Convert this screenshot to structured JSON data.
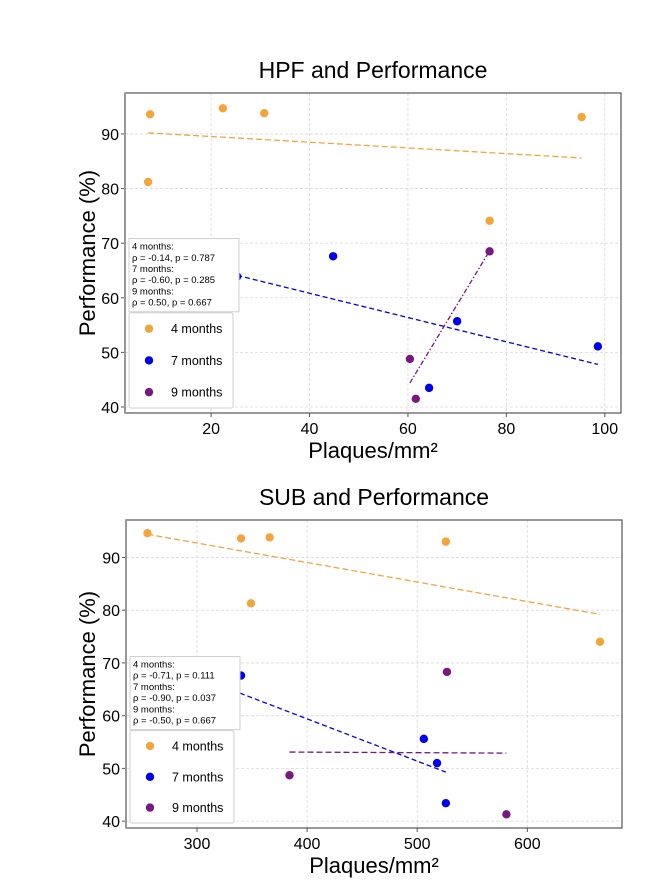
{
  "chart_data": [
    {
      "type": "scatter",
      "title": "HPF and Performance",
      "xlabel": "Plaques/mm²",
      "ylabel": "Performance (%)",
      "xlim": [
        2.5,
        103.3
      ],
      "ylim": [
        38.9,
        97.5
      ],
      "xticks": [
        20,
        40,
        60,
        80,
        100
      ],
      "yticks": [
        40,
        50,
        60,
        70,
        80,
        90
      ],
      "grid": true,
      "legend_position": "lower-left",
      "stats_text": [
        "4 months:",
        "ρ = -0.14, p = 0.787",
        "7 months:",
        "ρ = -0.60, p = 0.285",
        "9 months:",
        "ρ = 0.50, p = 0.667"
      ],
      "series": [
        {
          "name": "4 months",
          "color": "#f4a53a",
          "points": [
            [
              7.6,
              93.6
            ],
            [
              22.4,
              94.7
            ],
            [
              30.8,
              93.8
            ],
            [
              7.2,
              81.2
            ],
            [
              95.3,
              93.1
            ],
            [
              76.6,
              74.1
            ]
          ],
          "trendline": [
            [
              7.2,
              90.2
            ],
            [
              95.3,
              85.6
            ]
          ],
          "dash": "6,3"
        },
        {
          "name": "7 months",
          "color": "#0000ee",
          "points": [
            [
              25.3,
              63.9
            ],
            [
              44.8,
              67.6
            ],
            [
              70.0,
              55.7
            ],
            [
              64.3,
              43.5
            ],
            [
              98.6,
              51.1
            ]
          ],
          "trendline": [
            [
              25.3,
              64.1
            ],
            [
              98.6,
              47.8
            ]
          ],
          "dash": "5,3"
        },
        {
          "name": "9 months",
          "color": "#761a80",
          "points": [
            [
              76.6,
              68.5
            ],
            [
              60.4,
              48.8
            ],
            [
              61.6,
              41.5
            ]
          ],
          "trendline": [
            [
              60.4,
              44.4
            ],
            [
              76.4,
              68.3
            ]
          ],
          "dash": "5,2,1.5,2"
        }
      ]
    },
    {
      "type": "scatter",
      "title": "SUB and Performance",
      "xlabel": "Plaques/mm²",
      "ylabel": "Performance (%)",
      "xlim": [
        235.5,
        686
      ],
      "ylim": [
        38.7,
        97.1
      ],
      "xticks": [
        300,
        400,
        500,
        600
      ],
      "yticks": [
        40,
        50,
        60,
        70,
        80,
        90
      ],
      "grid": true,
      "legend_position": "lower-left",
      "stats_text": [
        "4 months:",
        "ρ = -0.71, p = 0.111",
        "7 months:",
        "ρ = -0.90, p = 0.037",
        "9 months:",
        "ρ = -0.50, p = 0.667"
      ],
      "series": [
        {
          "name": "4 months",
          "color": "#f4a53a",
          "points": [
            [
              255,
              94.6
            ],
            [
              340,
              93.6
            ],
            [
              366,
              93.8
            ],
            [
              349,
              81.3
            ],
            [
              526,
              93.0
            ],
            [
              666,
              74.0
            ]
          ],
          "trendline": [
            [
              255,
              94.4
            ],
            [
              666,
              79.2
            ]
          ],
          "dash": "6,3"
        },
        {
          "name": "7 months",
          "color": "#0000ee",
          "points": [
            [
              305,
              64.0
            ],
            [
              340,
              67.6
            ],
            [
              506,
              55.6
            ],
            [
              518,
              51.0
            ],
            [
              526,
              43.4
            ]
          ],
          "trendline": [
            [
              305,
              67.0
            ],
            [
              526,
              49.3
            ]
          ],
          "dash": "5,3"
        },
        {
          "name": "9 months",
          "color": "#761a80",
          "points": [
            [
              527,
              68.3
            ],
            [
              384,
              48.7
            ],
            [
              581,
              41.3
            ]
          ],
          "trendline": [
            [
              384,
              53.1
            ],
            [
              581,
              52.9
            ]
          ],
          "dash": "6,3"
        }
      ]
    }
  ]
}
